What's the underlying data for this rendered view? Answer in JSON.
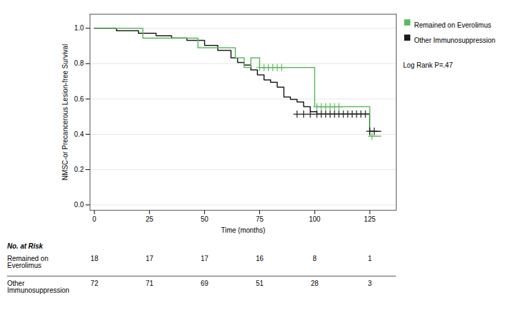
{
  "chart_data": {
    "type": "step",
    "xlabel": "Time (months)",
    "ylabel": "NMSC-or Precancerous Lesion-free Survival",
    "series": [
      {
        "name": "Remained on Everolimus",
        "color": "#5cb85c",
        "marker": "plus",
        "x": [
          0,
          22,
          22,
          47,
          47,
          64,
          64,
          68,
          68,
          71,
          71,
          75,
          75,
          83,
          83,
          86,
          86,
          100,
          100,
          125,
          125,
          130
        ],
        "values": [
          1.0,
          1.0,
          0.944,
          0.944,
          0.889,
          0.889,
          0.833,
          0.833,
          0.778,
          0.778,
          0.833,
          0.833,
          0.778,
          0.778,
          0.778,
          0.778,
          0.778,
          0.778,
          0.556,
          0.556,
          0.389,
          0.389
        ],
        "censor_x": [
          75,
          77,
          79,
          81,
          83,
          85,
          101,
          103,
          105,
          107,
          109,
          111,
          126
        ],
        "censor_values": [
          0.778,
          0.778,
          0.778,
          0.778,
          0.778,
          0.778,
          0.556,
          0.556,
          0.556,
          0.556,
          0.556,
          0.556,
          0.389
        ]
      },
      {
        "name": "Other Immunosuppression",
        "color": "#1a1a1a",
        "marker": "plus",
        "x": [
          0,
          10,
          10,
          20,
          20,
          28,
          28,
          35,
          35,
          42,
          42,
          50,
          50,
          56,
          56,
          62,
          62,
          65,
          65,
          68,
          68,
          71,
          71,
          74,
          74,
          77,
          77,
          80,
          80,
          83,
          83,
          86,
          86,
          89,
          89,
          92,
          92,
          95,
          95,
          98,
          98,
          101,
          101,
          104,
          104,
          107,
          107,
          110,
          110,
          113,
          113,
          116,
          116,
          119,
          119,
          122,
          122,
          125,
          125,
          130
        ],
        "values": [
          1.0,
          1.0,
          0.986,
          0.986,
          0.972,
          0.972,
          0.958,
          0.958,
          0.944,
          0.944,
          0.931,
          0.931,
          0.903,
          0.903,
          0.875,
          0.875,
          0.833,
          0.833,
          0.806,
          0.806,
          0.792,
          0.792,
          0.764,
          0.764,
          0.736,
          0.736,
          0.708,
          0.708,
          0.694,
          0.694,
          0.667,
          0.667,
          0.611,
          0.611,
          0.597,
          0.597,
          0.583,
          0.583,
          0.556,
          0.556,
          0.528,
          0.528,
          0.514,
          0.514,
          0.514,
          0.514,
          0.514,
          0.514,
          0.514,
          0.514,
          0.514,
          0.514,
          0.514,
          0.514,
          0.514,
          0.514,
          0.514,
          0.417,
          0.417,
          0.417
        ],
        "censor_x": [
          92,
          95,
          98,
          101,
          103,
          105,
          107,
          109,
          111,
          113,
          115,
          117,
          119,
          121,
          123,
          125,
          127
        ],
        "censor_values": [
          0.514,
          0.514,
          0.514,
          0.514,
          0.514,
          0.514,
          0.514,
          0.514,
          0.514,
          0.514,
          0.514,
          0.514,
          0.514,
          0.514,
          0.514,
          0.417,
          0.417
        ]
      }
    ],
    "xlim": [
      -2,
      137
    ],
    "ylim": [
      -0.03,
      1.08
    ],
    "xticks": [
      0,
      25,
      50,
      75,
      100,
      125
    ],
    "yticks": [
      {
        "value": 0,
        "label": "0.0"
      },
      0.2,
      0.4,
      0.6,
      0.8,
      {
        "value": 1,
        "label": "1.0"
      }
    ],
    "grid": "y",
    "annotations": [
      "Log Rank P=.47"
    ],
    "risk_table": {
      "title": "No. at Risk",
      "x": [
        0,
        25,
        50,
        75,
        100,
        125
      ],
      "rows": [
        {
          "name": "Remained on\nEverolimus",
          "values": [
            18,
            17,
            17,
            16,
            8,
            1
          ]
        },
        {
          "name": "Other\nImmunosuppression",
          "values": [
            72,
            71,
            69,
            51,
            28,
            3
          ]
        }
      ]
    }
  }
}
